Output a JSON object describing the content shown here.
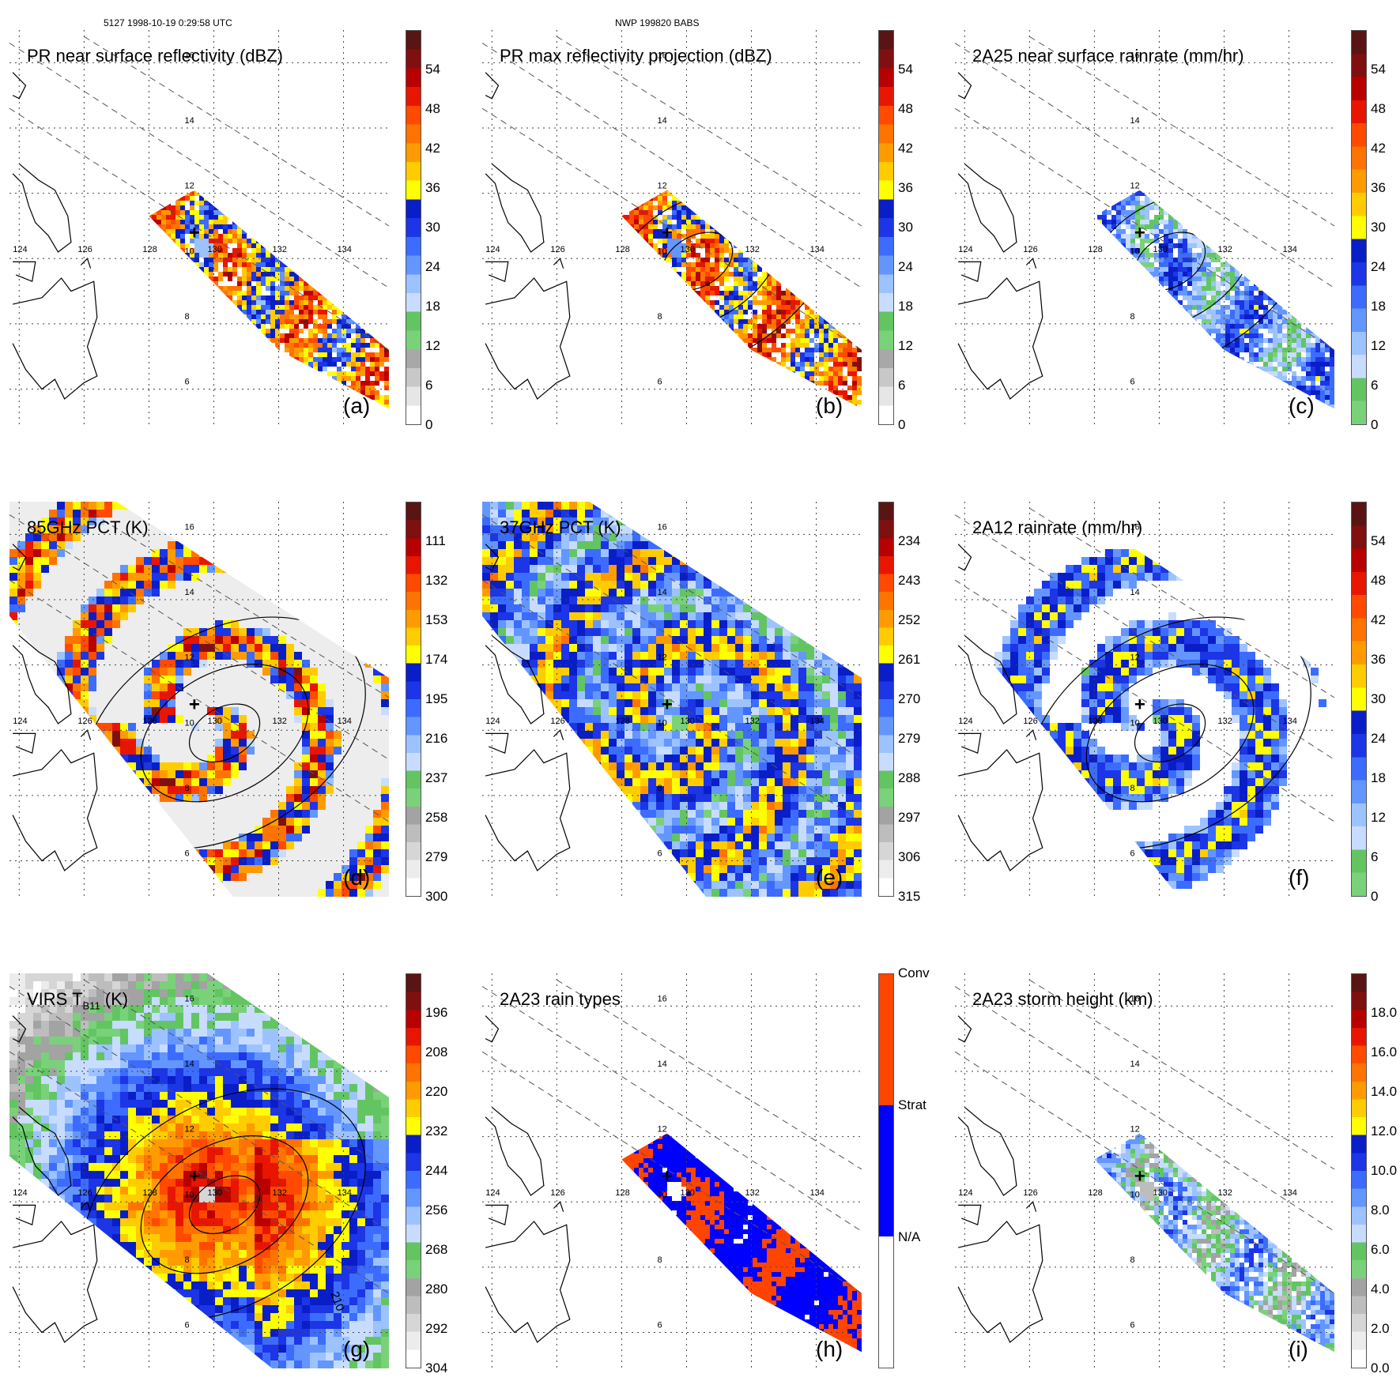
{
  "header": {
    "left": "5127 1998-10-19 0:29:58 UTC",
    "center": "NWP 199820 BABS"
  },
  "map": {
    "lon_ticks": [
      "124",
      "126",
      "128",
      "130",
      "132",
      "134"
    ],
    "lat_ticks": [
      "16",
      "14",
      "12",
      "10",
      "8",
      "6"
    ],
    "storm_marker": "+"
  },
  "palettes": {
    "dbz": [
      "#ffffff",
      "#e6e6e6",
      "#c8c8c8",
      "#a8a8a8",
      "#79d279",
      "#62c562",
      "#c8dcff",
      "#9cc3ff",
      "#6496ff",
      "#3c6cff",
      "#1c35e6",
      "#0a1ec8",
      "#ffff00",
      "#ffcc00",
      "#ff9b00",
      "#ff7300",
      "#ff4a00",
      "#e81500",
      "#b80000",
      "#801010",
      "#5a1414"
    ],
    "rain": [
      "#79d279",
      "#62c562",
      "#c8dcff",
      "#9cc3ff",
      "#6496ff",
      "#3c6cff",
      "#1c35e6",
      "#0a1ec8",
      "#ffff00",
      "#ffcc00",
      "#ff9b00",
      "#ff7300",
      "#ff4a00",
      "#e81500",
      "#b80000",
      "#801010",
      "#5a1414"
    ],
    "pct": [
      "#ffffff",
      "#ececec",
      "#d6d6d6",
      "#bdbdbd",
      "#a3a3a3",
      "#79d279",
      "#62c562",
      "#c8dcff",
      "#9cc3ff",
      "#6496ff",
      "#3c6cff",
      "#1c35e6",
      "#0a1ec8",
      "#ffff00",
      "#ffcc00",
      "#ff9b00",
      "#ff7300",
      "#ff4a00",
      "#e81500",
      "#b80000",
      "#801010",
      "#5a1414"
    ],
    "types": [
      "#ffffff",
      "#ffffff",
      "#ffffff",
      "#ffffff",
      "#0000ff",
      "#0000ff",
      "#0000ff",
      "#0000ff",
      "#ff4400",
      "#ff4400",
      "#ff4400",
      "#ff4400"
    ]
  },
  "chart_data": [
    {
      "id": "a",
      "type": "heatmap",
      "title": "PR near surface reflectivity (dBZ)",
      "panel_label": "(a)",
      "colorbar_ticks": [
        "54",
        "48",
        "42",
        "36",
        "30",
        "24",
        "18",
        "12",
        "6",
        "0"
      ],
      "colorbar_range": [
        0,
        60
      ],
      "palette": "dbz",
      "field": "swath",
      "intensity_min": 0.35,
      "intensity_max": 0.92,
      "contour": false
    },
    {
      "id": "b",
      "type": "heatmap",
      "title": "PR max reflectivity projection (dBZ)",
      "panel_label": "(b)",
      "colorbar_ticks": [
        "54",
        "48",
        "42",
        "36",
        "30",
        "24",
        "18",
        "12",
        "6",
        "0"
      ],
      "colorbar_range": [
        0,
        60
      ],
      "palette": "dbz",
      "field": "swath",
      "intensity_min": 0.4,
      "intensity_max": 0.95,
      "contour": true
    },
    {
      "id": "c",
      "type": "heatmap",
      "title": "2A25 near surface rainrate (mm/hr)",
      "panel_label": "(c)",
      "colorbar_ticks": [
        "54",
        "48",
        "42",
        "36",
        "30",
        "24",
        "18",
        "12",
        "6",
        "0"
      ],
      "colorbar_range": [
        0,
        60
      ],
      "palette": "rain",
      "field": "swath",
      "intensity_min": 0.0,
      "intensity_max": 0.5,
      "contour": true
    },
    {
      "id": "d",
      "type": "heatmap",
      "title": "85GHz PCT (K)",
      "panel_label": "(d)",
      "colorbar_ticks": [
        "111",
        "132",
        "153",
        "174",
        "195",
        "216",
        "237",
        "258",
        "279",
        "300"
      ],
      "colorbar_range": [
        300,
        90
      ],
      "palette": "pct",
      "field": "wide_pct85",
      "intensity_min": 0.0,
      "intensity_max": 0.95,
      "contour": true
    },
    {
      "id": "e",
      "type": "heatmap",
      "title": "37GHz PCT (K)",
      "panel_label": "(e)",
      "colorbar_ticks": [
        "234",
        "243",
        "252",
        "261",
        "270",
        "279",
        "288",
        "297",
        "306",
        "315"
      ],
      "colorbar_range": [
        315,
        225
      ],
      "palette": "pct",
      "field": "wide_pct37",
      "intensity_min": 0.25,
      "intensity_max": 0.75,
      "contour": false
    },
    {
      "id": "f",
      "type": "heatmap",
      "title": "2A12 rainrate (mm/hr)",
      "panel_label": "(f)",
      "colorbar_ticks": [
        "54",
        "48",
        "42",
        "36",
        "30",
        "24",
        "18",
        "12",
        "6",
        "0"
      ],
      "colorbar_range": [
        0,
        60
      ],
      "palette": "rain",
      "field": "wide_rain",
      "intensity_min": 0.0,
      "intensity_max": 0.55,
      "contour": true
    },
    {
      "id": "g",
      "type": "heatmap",
      "title": "VIRS T",
      "title_sub": "B11",
      "title_tail": " (K)",
      "panel_label": "(g)",
      "colorbar_ticks": [
        "196",
        "208",
        "220",
        "232",
        "244",
        "256",
        "268",
        "280",
        "292",
        "304"
      ],
      "colorbar_range": [
        304,
        184
      ],
      "palette": "pct",
      "field": "virs",
      "intensity_min": 0.1,
      "intensity_max": 0.98,
      "contour": true,
      "contour_label": "210"
    },
    {
      "id": "h",
      "type": "heatmap",
      "title": "2A23 rain types",
      "panel_label": "(h)",
      "colorbar_ticks": [
        "Conv",
        "Strat",
        "N/A"
      ],
      "palette": "types",
      "field": "swath_types",
      "intensity_min": 0.3,
      "intensity_max": 0.9,
      "contour": false
    },
    {
      "id": "i",
      "type": "heatmap",
      "title": "2A23 storm height (km)",
      "panel_label": "(i)",
      "colorbar_ticks": [
        "18.0",
        "16.0",
        "14.0",
        "12.0",
        "10.0",
        "8.0",
        "6.0",
        "4.0",
        "2.0",
        "0.0"
      ],
      "colorbar_range": [
        0,
        20
      ],
      "palette": "pct",
      "field": "swath",
      "intensity_min": 0.15,
      "intensity_max": 0.55,
      "contour": false
    }
  ]
}
